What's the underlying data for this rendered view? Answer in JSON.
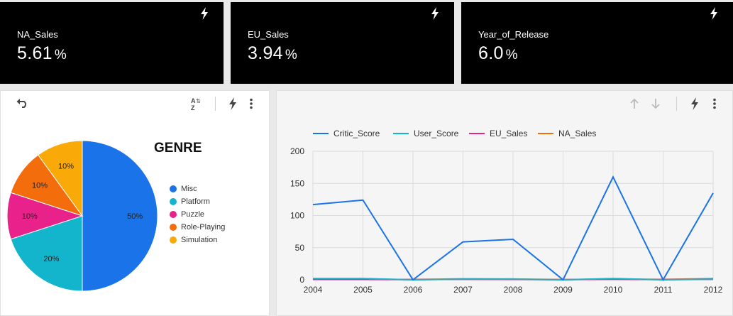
{
  "kpis": [
    {
      "label": "NA_Sales",
      "value": "5.61",
      "unit": "%"
    },
    {
      "label": "EU_Sales",
      "value": "3.94",
      "unit": "%"
    },
    {
      "label": "Year_of_Release",
      "value": "6.0",
      "unit": "%"
    }
  ],
  "pie_panel": {
    "title": "GENRE",
    "toolbar_icons": [
      "undo-icon",
      "sort-az-icon",
      "bolt-icon",
      "more-vert-icon"
    ]
  },
  "line_panel": {
    "toolbar_icons": [
      "arrow-up-icon",
      "arrow-down-icon",
      "bolt-icon",
      "more-vert-icon"
    ]
  },
  "colors": {
    "misc": "#1a73e8",
    "platform": "#12b5cb",
    "puzzle": "#e8228a",
    "role_playing": "#f46d0c",
    "simulation": "#f9a908",
    "critic_score": "#1a73e8",
    "user_score": "#12b5cb",
    "eu_sales": "#e8228a",
    "na_sales": "#f46d0c"
  },
  "chart_data": [
    {
      "type": "pie",
      "title": "GENRE",
      "categories": [
        "Misc",
        "Platform",
        "Puzzle",
        "Role-Playing",
        "Simulation"
      ],
      "values": [
        50,
        20,
        10,
        10,
        10
      ],
      "labels": [
        "50%",
        "20%",
        "10%",
        "10%",
        "10%"
      ],
      "legend": "right"
    },
    {
      "type": "line",
      "x": [
        "2004",
        "2005",
        "2006",
        "2007",
        "2008",
        "2009",
        "2010",
        "2011",
        "2012"
      ],
      "ylim": [
        0,
        200
      ],
      "yticks": [
        "0",
        "50",
        "100",
        "150",
        "200"
      ],
      "grid": true,
      "legend": "top",
      "series": [
        {
          "name": "Critic_Score",
          "values": [
            117,
            124,
            0,
            59,
            63,
            0,
            160,
            0,
            135
          ]
        },
        {
          "name": "User_Score",
          "values": [
            2,
            2,
            0,
            1,
            1,
            0,
            2,
            0,
            1
          ]
        },
        {
          "name": "EU_Sales",
          "values": [
            0.5,
            0.5,
            0.3,
            0.8,
            0.5,
            0.2,
            0.9,
            0.3,
            1
          ]
        },
        {
          "name": "NA_Sales",
          "values": [
            1,
            0.8,
            0.4,
            1.5,
            1.2,
            0.3,
            1.3,
            0.5,
            2
          ]
        }
      ]
    }
  ]
}
